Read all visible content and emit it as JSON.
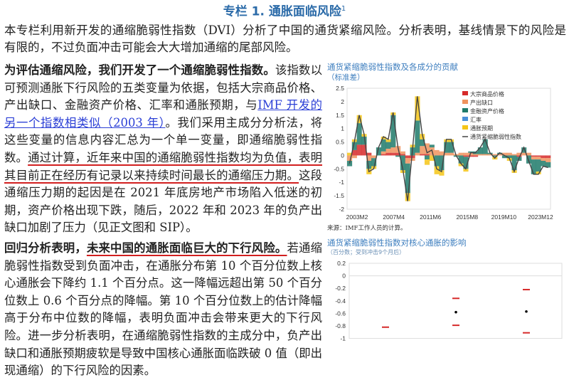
{
  "title": "专栏 1. 通胀面临风险",
  "title_note": "1",
  "intro": "本专栏利用新开发的通缩脆弱性指数（DVI）分析了中国的通货紧缩风险。分析表明，基线情景下的风险是有限的，不过负面冲击可能会大大增加通缩的尾部风险。",
  "para1": {
    "bold": "为评估通缩风险，我们开发了一个通缩脆弱性指数。",
    "t1": "该指数以可预测通胀下行风险的五类变量为依据，包括大宗商品价格、产出缺口、金融资产价格、汇率和通胀预期，与",
    "link": "IMF 开发的另一个指数相类似（2003 年）",
    "t2": "。我们采用主成分分析法，将这些变量的信息内容汇总为一个单一变量，即通缩脆弱性指数。",
    "underlined": "通过计算，近年来中国的通缩脆弱性指数均为负值，表明其目前正在经历有记录以来持续时间最长的通缩压力期。",
    "t3": "这段通缩压力期的起因是在 2021 年底房地产市场陷入低迷的初期，资产价格出现下跌，随后，2022 年和 2023 年的负产出缺口加剧了压力（见正文图和 SIP）。"
  },
  "para2": {
    "bold1": "回归分析表明，",
    "bold_underlined": "未来中国的通胀面临巨大的下行风险。",
    "t1": "若通缩脆弱性指数受到负面冲击，在通胀分布第 10 个百分位数上核心通胀会下降约 1.1 个百分点。这一降幅远超出第 50 个百分位数上 0.6 个百分点的降幅。第 10 个百分位数上的估计降幅高于分布中位数的降幅，表明负面冲击会带来更大的下行风险。进一步分析表明，在通缩脆弱性指数的主成分中，负产出缺口和通胀预期疲软是导致中国核心通胀面临跌破 0 值（即出现通缩）的下行风险的因素。"
  },
  "chart_data": [
    {
      "type": "bar",
      "title": "通货紧缩脆弱性指数及各成分的贡献",
      "subtitle": "（标准差）",
      "source": "来源：IMF工作人员的计算。",
      "ylim": [
        -2,
        2.5
      ],
      "yticks": [
        "2.5",
        "2",
        "1.5",
        "1",
        "0.5",
        "0",
        "-0.5",
        "-1",
        "-1.5",
        "-2"
      ],
      "xticks": [
        "2003M2",
        "2007M4",
        "2011M6",
        "2015M8",
        "2019M10",
        "2023M12"
      ],
      "legend_position": "top-right",
      "colors": {
        "commodity": "#d62a2a",
        "output_gap": "#f0935e",
        "financial": "#1f7a6a",
        "fx": "#4a90d9",
        "expectations": "#f5c518",
        "index": "#444444"
      },
      "series": [
        {
          "name": "大宗商品价格",
          "key": "commodity",
          "values": [
            0,
            0.2,
            0.4,
            0.4,
            0.1,
            0,
            0,
            0.05,
            0.1,
            0.1,
            0.1,
            0.05,
            -0.1,
            -0.1,
            0,
            0.05,
            0.05,
            0,
            0,
            0,
            0,
            0,
            0,
            0,
            -0.05,
            -0.05,
            -0.05,
            0,
            0,
            0,
            0,
            0,
            0,
            0,
            0,
            -0.05,
            0,
            0,
            -0.05,
            -0.05,
            -0.1,
            -0.1
          ]
        },
        {
          "name": "产出缺口",
          "key": "output_gap",
          "values": [
            -0.2,
            -0.1,
            0,
            0,
            -0.2,
            -0.1,
            0,
            0.1,
            0.15,
            0.2,
            0.25,
            0.1,
            -0.2,
            -0.1,
            0.1,
            0.3,
            0.4,
            0.3,
            0.2,
            0.15,
            0.1,
            0.1,
            0.05,
            0.1,
            0.1,
            0.1,
            0.05,
            0.05,
            0.05,
            0.05,
            0.05,
            0.05,
            0.1,
            0.1,
            0.05,
            0.1,
            0.1,
            0.1,
            -0.1,
            -0.1,
            -0.1,
            -0.15
          ]
        },
        {
          "name": "金融资产价格",
          "key": "financial",
          "values": [
            -0.2,
            0.3,
            0.8,
            0.3,
            -0.3,
            -0.3,
            0.3,
            0.45,
            0.25,
            1.2,
            -0.05,
            -0.55,
            -1.1,
            0.3,
            1.2,
            0.25,
            -0.15,
            0.1,
            -0.4,
            -0.55,
            0.4,
            0.4,
            -0.05,
            -0.3,
            -0.45,
            0.05,
            0.1,
            0.25,
            0.55,
            0.05,
            -0.05,
            0.05,
            -0.1,
            -0.1,
            -0.55,
            -0.15,
            0.2,
            -0.3,
            -0.55,
            -0.45,
            -0.2,
            -0.2
          ]
        },
        {
          "name": "汇率",
          "key": "fx",
          "values": [
            0,
            0,
            0,
            0,
            0,
            0,
            0,
            0,
            0,
            0,
            0,
            0,
            0,
            0,
            0,
            0,
            0,
            0,
            0,
            0,
            0,
            0,
            0,
            0,
            0,
            0,
            0,
            0,
            0,
            0,
            0,
            0,
            0,
            0,
            0,
            0,
            0,
            0,
            0,
            0,
            0,
            0
          ]
        },
        {
          "name": "通胀预期",
          "key": "expectations",
          "values": [
            0.1,
            0.1,
            0.3,
            0.1,
            -0.2,
            -0.1,
            0,
            0.1,
            0.1,
            0.1,
            0,
            -0.1,
            -0.3,
            0.1,
            0.9,
            0.2,
            -0.2,
            -0.2,
            -0.3,
            -0.2,
            0.1,
            0.1,
            0,
            -0.1,
            -0.1,
            0,
            0,
            0,
            0,
            0,
            -0.1,
            0,
            0,
            -0.1,
            -0.1,
            0,
            0,
            0,
            0,
            -0.1,
            0,
            0
          ]
        },
        {
          "name": "通货紧缩脆弱性指数",
          "key": "index",
          "type": "line",
          "values": [
            -0.3,
            0.5,
            1.5,
            0.8,
            -0.6,
            -0.5,
            0.3,
            0.7,
            0.6,
            1.6,
            0.3,
            -0.5,
            -1.7,
            0.2,
            2.2,
            0.8,
            0.1,
            0.2,
            -0.5,
            -0.6,
            0.6,
            0.6,
            0,
            -0.3,
            -0.5,
            0.1,
            0.1,
            0.3,
            0.6,
            0.1,
            -0.1,
            0.1,
            0,
            -0.1,
            -0.6,
            -0.1,
            0.3,
            -0.2,
            -0.7,
            -0.7,
            -0.4,
            -0.45
          ]
        }
      ]
    },
    {
      "type": "scatter",
      "title": "通货紧缩脆弱性指数对核心通胀的影响",
      "subtitle": "（百分数；受到冲击9个月后）",
      "ylim": [
        -1,
        0.2
      ],
      "yticks": [
        "0.2",
        "0",
        "-0.2",
        "-0.4",
        "-0.6",
        "-0.8",
        "-1"
      ],
      "colors": {
        "point": "#000000",
        "bound": "#d62a2a"
      },
      "points": [
        {
          "estimate": null,
          "upper": -0.82,
          "lower": null
        },
        {
          "estimate": -0.58,
          "upper": -0.36,
          "lower": -0.79
        },
        {
          "estimate": -0.57,
          "upper": -0.22,
          "lower": -0.91
        }
      ]
    }
  ]
}
